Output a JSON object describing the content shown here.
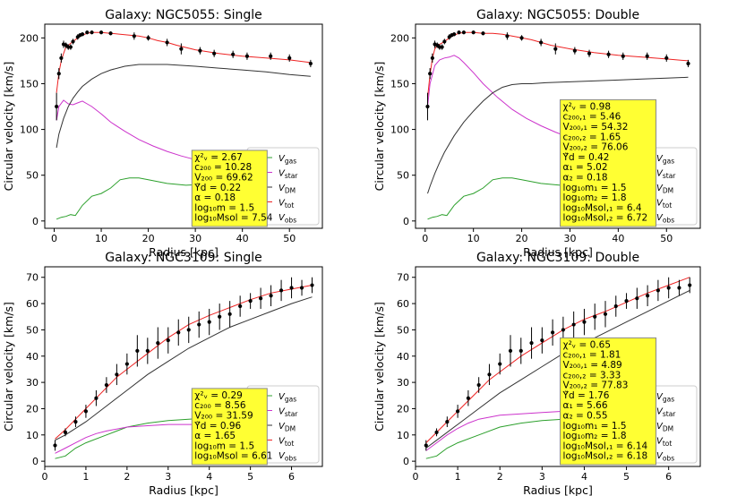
{
  "colors": {
    "gas": "#2ca02c",
    "star": "#cc33cc",
    "dm": "#333333",
    "tot": "#ee2222",
    "obs": "#000000",
    "box": "#ffff33"
  },
  "legend": [
    "V_gas",
    "V_star",
    "V_DM",
    "V_tot",
    "V_obs"
  ],
  "chart_data": [
    {
      "type": "line",
      "title": "Galaxy: NGC5055: Single",
      "xlabel": "Radius [kpc]",
      "ylabel": "Circular velocity [km/s]",
      "xlim": [
        -2,
        57
      ],
      "ylim": [
        -8,
        215
      ],
      "xticks": [
        0,
        10,
        20,
        30,
        40,
        50
      ],
      "yticks": [
        0,
        50,
        100,
        150,
        200
      ],
      "info": [
        "χ²ᵥ = 2.67",
        "c₂₀₀ = 10.28",
        "V₂₀₀ = 69.62",
        "Υ̃d = 0.22",
        "α = 0.18",
        "log₁₀m = 1.5",
        "log₁₀Msol = 7.54"
      ],
      "series": [
        {
          "name": "V_gas",
          "x": [
            0.5,
            1.5,
            2.5,
            3.5,
            4.5,
            6,
            8,
            10,
            12,
            14,
            16,
            18,
            20,
            24,
            28,
            32,
            36,
            40,
            44,
            48,
            52,
            54.5
          ],
          "y": [
            2,
            4,
            5,
            7,
            6,
            17,
            27,
            30,
            36,
            45,
            47,
            47,
            45,
            41,
            39,
            40,
            42,
            44,
            46,
            48,
            50,
            51
          ]
        },
        {
          "name": "V_star",
          "x": [
            0.5,
            1,
            2,
            3,
            4,
            5,
            6,
            7,
            8,
            10,
            12,
            15,
            18,
            21,
            24,
            27,
            30,
            35,
            40,
            45,
            50,
            54.5
          ],
          "y": [
            110,
            125,
            132,
            128,
            127,
            129,
            131,
            128,
            125,
            117,
            108,
            98,
            89,
            82,
            76,
            71,
            67,
            62,
            58,
            56,
            54,
            53
          ]
        },
        {
          "name": "V_DM",
          "x": [
            0.5,
            1,
            2,
            3,
            4,
            5,
            6,
            8,
            10,
            12,
            15,
            18,
            21,
            24,
            27,
            30,
            35,
            40,
            45,
            50,
            54.5
          ],
          "y": [
            80,
            95,
            112,
            125,
            134,
            141,
            147,
            155,
            161,
            165,
            169,
            171,
            171,
            171,
            170,
            169,
            167,
            165,
            163,
            160,
            158
          ]
        },
        {
          "name": "V_tot",
          "x": [
            0.5,
            1,
            1.5,
            2,
            2.5,
            3,
            4,
            5,
            6,
            7,
            8,
            10,
            12,
            14,
            16,
            18,
            20,
            22,
            24,
            26,
            30,
            35,
            40,
            45,
            50,
            54.5
          ],
          "y": [
            140,
            162,
            175,
            183,
            190,
            192,
            196,
            200,
            203,
            205,
            206,
            206,
            205,
            204,
            203,
            202,
            200,
            197,
            195,
            192,
            187,
            183,
            180,
            178,
            176,
            173
          ]
        }
      ],
      "obs": {
        "x": [
          0.5,
          1,
          1.5,
          2,
          2.5,
          3,
          3.5,
          4,
          5,
          5.5,
          6,
          7,
          8,
          10,
          12,
          17,
          20,
          24,
          27,
          31,
          34,
          38,
          41,
          46,
          50,
          54.5
        ],
        "y": [
          125,
          161,
          178,
          193,
          192,
          190,
          190,
          196,
          201,
          203,
          204,
          206,
          206,
          206,
          205,
          202,
          200,
          195,
          188,
          186,
          183,
          182,
          180,
          180,
          178,
          172
        ],
        "err": [
          15,
          6,
          5,
          4,
          3,
          3,
          3,
          3,
          3,
          2,
          2,
          2,
          2,
          2,
          2,
          4,
          3,
          4,
          6,
          4,
          4,
          4,
          4,
          4,
          4,
          4
        ]
      }
    },
    {
      "type": "line",
      "title": "Galaxy: NGC5055: Double",
      "xlabel": "Radius [kpc]",
      "ylabel": "Circular velocity [km/s]",
      "xlim": [
        -2,
        57
      ],
      "ylim": [
        -8,
        215
      ],
      "xticks": [
        0,
        10,
        20,
        30,
        40,
        50
      ],
      "yticks": [
        0,
        50,
        100,
        150,
        200
      ],
      "info": [
        "χ²ᵥ = 0.98",
        "c₂₀₀,₁ = 5.46",
        "V₂₀₀,₁ = 54.32",
        "c₂₀₀,₂ = 1.65",
        "V₂₀₀,₂ = 76.06",
        "Υ̃d = 0.42",
        "α₁ = 5.02",
        "α₂ = 0.18",
        "log₁₀m₁ = 1.5",
        "log₁₀m₂ = 1.8",
        "log₁₀Msol,₁ = 6.4",
        "log₁₀Msol,₂ = 6.72"
      ],
      "series": [
        {
          "name": "V_gas",
          "x": [
            0.5,
            1.5,
            2.5,
            3.5,
            4.5,
            6,
            8,
            10,
            12,
            14,
            16,
            18,
            20,
            24,
            28,
            32,
            36,
            40,
            44,
            48,
            52,
            54.5
          ],
          "y": [
            2,
            4,
            5,
            7,
            6,
            17,
            27,
            30,
            36,
            45,
            47,
            47,
            45,
            41,
            39,
            40,
            42,
            44,
            46,
            48,
            50,
            51
          ]
        },
        {
          "name": "V_star",
          "x": [
            0.5,
            1,
            2,
            3,
            4,
            5,
            6,
            7,
            8,
            10,
            12,
            15,
            18,
            21,
            24,
            27,
            30,
            35,
            40,
            45,
            50,
            54.5
          ],
          "y": [
            125,
            150,
            170,
            176,
            178,
            179,
            181,
            178,
            173,
            162,
            150,
            135,
            122,
            112,
            104,
            97,
            91,
            83,
            77,
            73,
            70,
            68
          ]
        },
        {
          "name": "V_DM",
          "x": [
            0.5,
            1,
            2,
            3,
            4,
            6,
            8,
            10,
            12,
            14,
            16,
            18,
            20,
            22,
            25,
            30,
            35,
            40,
            45,
            50,
            54.5
          ],
          "y": [
            30,
            38,
            52,
            64,
            75,
            93,
            108,
            120,
            131,
            140,
            146,
            149,
            150,
            150,
            151,
            152,
            153,
            154,
            155,
            156,
            157
          ]
        },
        {
          "name": "V_tot",
          "x": [
            0.5,
            1,
            1.5,
            2,
            2.5,
            3,
            4,
            5,
            6,
            7,
            8,
            10,
            12,
            14,
            16,
            18,
            20,
            22,
            24,
            26,
            30,
            35,
            40,
            45,
            50,
            54.5
          ],
          "y": [
            135,
            160,
            178,
            188,
            192,
            193,
            196,
            200,
            203,
            205,
            206,
            206,
            205,
            205,
            204,
            202,
            200,
            198,
            195,
            192,
            188,
            184,
            181,
            179,
            177,
            175
          ]
        }
      ],
      "obs": {
        "x": [
          0.5,
          1,
          1.5,
          2,
          2.5,
          3,
          3.5,
          4,
          5,
          5.5,
          6,
          7,
          8,
          10,
          12,
          17,
          20,
          24,
          27,
          31,
          34,
          38,
          41,
          46,
          50,
          54.5
        ],
        "y": [
          125,
          161,
          178,
          193,
          192,
          190,
          190,
          196,
          201,
          203,
          204,
          206,
          206,
          206,
          205,
          202,
          200,
          195,
          188,
          186,
          183,
          182,
          180,
          180,
          178,
          172
        ],
        "err": [
          15,
          6,
          5,
          4,
          3,
          3,
          3,
          3,
          3,
          2,
          2,
          2,
          2,
          2,
          2,
          4,
          3,
          4,
          6,
          4,
          4,
          4,
          4,
          4,
          4,
          4
        ]
      }
    },
    {
      "type": "line",
      "title": "Galaxy: NGC3109: Single",
      "xlabel": "Radius [kpc]",
      "ylabel": "Circular velocity [km/s]",
      "xlim": [
        0,
        6.75
      ],
      "ylim": [
        -2,
        74
      ],
      "xticks": [
        0,
        1,
        2,
        3,
        4,
        5,
        6
      ],
      "yticks": [
        0,
        10,
        20,
        30,
        40,
        50,
        60,
        70
      ],
      "info": [
        "χ²ᵥ = 0.29",
        "c₂₀₀ = 8.56",
        "V₂₀₀ = 31.59",
        "Υ̃d = 0.96",
        "α = 1.65",
        "log₁₀m = 1.5",
        "log₁₀Msol = 6.61"
      ],
      "series": [
        {
          "name": "V_gas",
          "x": [
            0.25,
            0.5,
            0.75,
            1,
            1.5,
            2,
            2.5,
            3,
            3.5,
            4,
            4.5,
            5,
            5.5,
            6,
            6.5
          ],
          "y": [
            1,
            2,
            5,
            7,
            10,
            13,
            14.5,
            15.5,
            16,
            16.5,
            17,
            17.5,
            18,
            19,
            20
          ]
        },
        {
          "name": "V_star",
          "x": [
            0.25,
            0.5,
            0.75,
            1,
            1.25,
            1.5,
            2,
            2.5,
            3,
            3.5,
            4,
            4.5,
            5,
            5.5,
            6,
            6.5
          ],
          "y": [
            3,
            5,
            7,
            9,
            10.5,
            11.5,
            13,
            13.5,
            14,
            14,
            14,
            14,
            14,
            14,
            14,
            13.5
          ]
        },
        {
          "name": "V_DM",
          "x": [
            0.25,
            0.5,
            1,
            1.5,
            2,
            2.5,
            3,
            3.5,
            4,
            4.5,
            5,
            5.5,
            6,
            6.5
          ],
          "y": [
            8,
            10,
            15,
            21,
            27,
            33,
            38,
            43,
            47,
            51,
            54,
            57,
            60,
            62.5
          ]
        },
        {
          "name": "V_tot",
          "x": [
            0.25,
            0.5,
            0.75,
            1,
            1.25,
            1.5,
            1.75,
            2,
            2.5,
            3,
            3.5,
            4,
            4.5,
            5,
            5.5,
            6,
            6.5
          ],
          "y": [
            8.5,
            12,
            16,
            20,
            24,
            28,
            32,
            35,
            41,
            47,
            52,
            55.5,
            58.5,
            61.5,
            64,
            65.5,
            67
          ]
        }
      ],
      "obs": {
        "x": [
          0.25,
          0.5,
          0.75,
          1,
          1.25,
          1.5,
          1.75,
          2,
          2.25,
          2.5,
          2.75,
          3,
          3.25,
          3.5,
          3.75,
          4,
          4.25,
          4.5,
          4.75,
          5,
          5.25,
          5.5,
          5.75,
          6,
          6.25,
          6.5
        ],
        "y": [
          6,
          11,
          15,
          19,
          24,
          29,
          33,
          37,
          42,
          42,
          45,
          46,
          49,
          50,
          52,
          53,
          55,
          56,
          59,
          61,
          62,
          63,
          65,
          66,
          66,
          67
        ],
        "err": [
          2,
          1.5,
          2,
          2.5,
          3,
          3,
          4,
          4,
          6,
          5,
          6,
          5,
          5,
          5,
          5,
          5,
          5,
          5,
          4,
          3,
          4,
          4,
          4,
          4,
          3,
          3
        ]
      }
    },
    {
      "type": "line",
      "title": "Galaxy: NGC3109: Double",
      "xlabel": "Radius [kpc]",
      "ylabel": "Circular velocity [km/s]",
      "xlim": [
        0,
        6.75
      ],
      "ylim": [
        -2,
        74
      ],
      "xticks": [
        0,
        1,
        2,
        3,
        4,
        5,
        6
      ],
      "yticks": [
        0,
        10,
        20,
        30,
        40,
        50,
        60,
        70
      ],
      "info": [
        "χ²ᵥ = 0.65",
        "c₂₀₀,₁ = 1.81",
        "V₂₀₀,₁ = 4.89",
        "c₂₀₀,₂ = 3.33",
        "V₂₀₀,₂ = 77.83",
        "Υ̃d = 1.76",
        "α₁ = 5.66",
        "α₂ = 0.55",
        "log₁₀m₁ = 1.5",
        "log₁₀m₂ = 1.8",
        "log₁₀Msol,₁ = 6.14",
        "log₁₀Msol,₂ = 6.18"
      ],
      "series": [
        {
          "name": "V_gas",
          "x": [
            0.25,
            0.5,
            0.75,
            1,
            1.5,
            2,
            2.5,
            3,
            3.5,
            4,
            4.5,
            5,
            5.5,
            6,
            6.5
          ],
          "y": [
            1,
            2,
            5,
            7,
            10,
            13,
            14.5,
            15.5,
            16,
            16.5,
            17,
            17.5,
            18,
            19,
            20
          ]
        },
        {
          "name": "V_star",
          "x": [
            0.25,
            0.5,
            0.75,
            1,
            1.25,
            1.5,
            2,
            2.5,
            3,
            3.5,
            4,
            4.5,
            5,
            5.5,
            6,
            6.5
          ],
          "y": [
            4,
            7,
            10,
            12.5,
            14.5,
            16,
            17.5,
            18,
            18.5,
            19,
            19,
            19,
            19,
            19,
            19,
            18.5
          ]
        },
        {
          "name": "V_DM",
          "x": [
            0.25,
            0.5,
            1,
            1.5,
            2,
            2.5,
            3,
            3.5,
            4,
            4.5,
            5,
            5.5,
            6,
            6.5
          ],
          "y": [
            5,
            8,
            14,
            20,
            26,
            31,
            36,
            41,
            45,
            49,
            53,
            57,
            61,
            65
          ]
        },
        {
          "name": "V_tot",
          "x": [
            0.25,
            0.5,
            0.75,
            1,
            1.25,
            1.5,
            1.75,
            2,
            2.5,
            3,
            3.5,
            4,
            4.5,
            5,
            5.5,
            6,
            6.5
          ],
          "y": [
            7,
            11,
            15,
            19,
            23,
            27,
            31,
            34,
            40,
            45,
            50,
            54,
            57,
            60.5,
            64,
            67,
            70
          ]
        }
      ],
      "obs": {
        "x": [
          0.25,
          0.5,
          0.75,
          1,
          1.25,
          1.5,
          1.75,
          2,
          2.25,
          2.5,
          2.75,
          3,
          3.25,
          3.5,
          3.75,
          4,
          4.25,
          4.5,
          4.75,
          5,
          5.25,
          5.5,
          5.75,
          6,
          6.25,
          6.5
        ],
        "y": [
          6,
          11,
          15,
          19,
          24,
          29,
          33,
          37,
          42,
          42,
          45,
          46,
          49,
          50,
          52,
          53,
          55,
          56,
          59,
          61,
          62,
          63,
          65,
          66,
          66,
          67
        ],
        "err": [
          2,
          1.5,
          2,
          2.5,
          3,
          3,
          4,
          4,
          6,
          5,
          6,
          5,
          5,
          5,
          5,
          5,
          5,
          5,
          4,
          3,
          4,
          4,
          4,
          4,
          3,
          3
        ]
      }
    }
  ]
}
